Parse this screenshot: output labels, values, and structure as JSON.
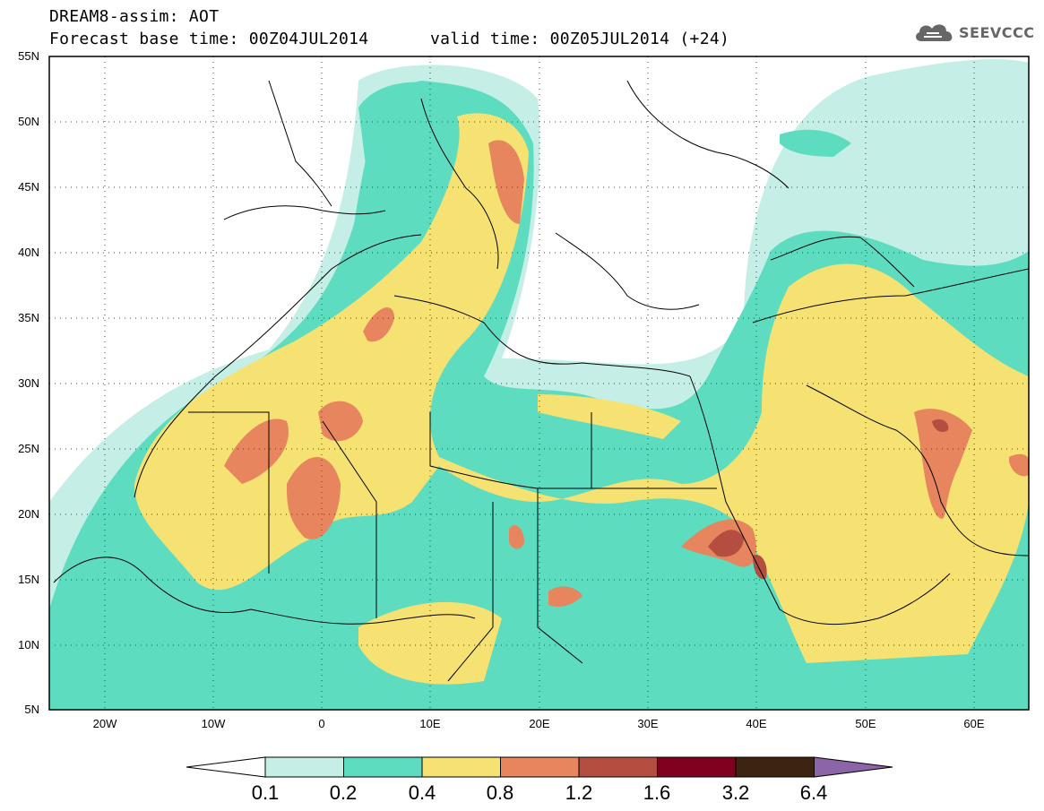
{
  "header": {
    "title": "DREAM8-assim: AOT",
    "base_time": "Forecast base time: 00Z04JUL2014",
    "valid_time": "valid time: 00Z05JUL2014 (+24)"
  },
  "logo": {
    "text": "SEEVCCC",
    "icon": "cloud-icon"
  },
  "map": {
    "lon_range": [
      -25,
      65
    ],
    "lat_range": [
      5,
      55
    ],
    "lat_labels": [
      "55N",
      "50N",
      "45N",
      "40N",
      "35N",
      "30N",
      "25N",
      "20N",
      "15N",
      "10N",
      "5N"
    ],
    "lon_labels": [
      "20W",
      "10W",
      "0",
      "10E",
      "20E",
      "30E",
      "40E",
      "50E",
      "60E"
    ],
    "grid": "dotted"
  },
  "colorbar": {
    "levels": [
      "0.1",
      "0.2",
      "0.4",
      "0.8",
      "1.2",
      "1.6",
      "3.2",
      "6.4"
    ],
    "colors": [
      "#c5efe6",
      "#5ddcbf",
      "#f6e173",
      "#e6855e",
      "#b44e40",
      "#800020",
      "#3d2410",
      "#8c64a8"
    ],
    "under_color": "#ffffff"
  }
}
